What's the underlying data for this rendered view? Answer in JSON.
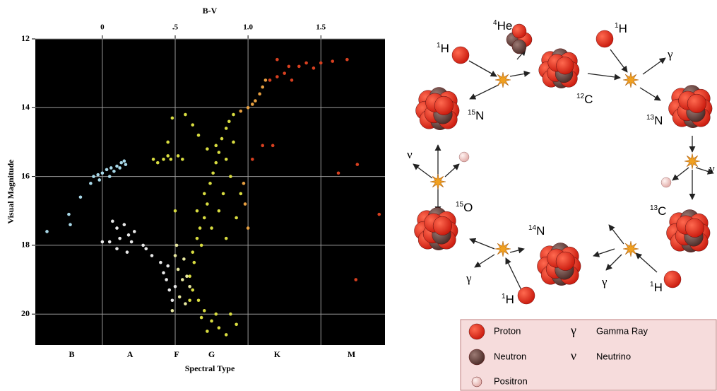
{
  "chart_data": {
    "type": "scatter",
    "title": "B-V",
    "ylabel": "Visual Magnitude",
    "xlabel": "Spectral Type",
    "xlim": [
      -0.46,
      1.94
    ],
    "ylim": [
      12,
      20.9
    ],
    "y_inverted": true,
    "grid": true,
    "xticks": [
      0,
      {
        "value": 0.5,
        "label": ".5"
      },
      {
        "value": 1,
        "label": "1.0"
      },
      1.5
    ],
    "yticks": [
      12,
      14,
      16,
      18,
      20
    ],
    "spectral_types": [
      {
        "value": -0.21,
        "label": "B"
      },
      {
        "value": 0.19,
        "label": "A"
      },
      {
        "value": 0.51,
        "label": "F"
      },
      {
        "value": 0.75,
        "label": "G"
      },
      {
        "value": 1.2,
        "label": "K"
      },
      {
        "value": 1.71,
        "label": "M"
      }
    ],
    "groups": [
      {
        "color": "#a8d8e8",
        "x": [
          -0.38,
          -0.22,
          -0.23,
          -0.15,
          -0.08,
          -0.06,
          -0.03,
          0.0,
          0.03,
          0.06,
          0.1,
          0.13,
          0.15,
          0.05,
          0.08,
          -0.02,
          0.12,
          0.16
        ],
        "y": [
          17.6,
          17.4,
          17.1,
          16.6,
          16.2,
          16.0,
          15.95,
          15.9,
          15.8,
          15.75,
          15.7,
          15.6,
          15.55,
          16.0,
          15.85,
          16.1,
          15.75,
          15.65
        ]
      },
      {
        "color": "#e8e8e8",
        "x": [
          0.05,
          0.1,
          0.1,
          0.15,
          0.18,
          0.2,
          0.07,
          0.12,
          0.17,
          0.0,
          0.22,
          0.28,
          0.3,
          0.34,
          0.4,
          0.42,
          0.44,
          0.46,
          0.48,
          0.45,
          0.5
        ],
        "y": [
          17.9,
          18.1,
          17.5,
          17.4,
          17.7,
          17.9,
          17.3,
          17.8,
          18.2,
          17.9,
          17.6,
          18.0,
          18.1,
          18.3,
          18.5,
          18.8,
          19.0,
          19.3,
          19.6,
          18.6,
          19.2
        ]
      },
      {
        "color": "#e8e8a0",
        "x": [
          0.5,
          0.52,
          0.55,
          0.58,
          0.53,
          0.48,
          0.56,
          0.6,
          0.51,
          0.57
        ],
        "y": [
          18.3,
          18.7,
          19.0,
          18.9,
          19.5,
          19.9,
          18.4,
          19.2,
          18.0,
          19.7
        ]
      },
      {
        "color": "#d8dc40",
        "x": [
          0.35,
          0.38,
          0.42,
          0.45,
          0.47,
          0.52,
          0.55,
          0.48,
          0.45,
          0.5,
          0.62,
          0.65,
          0.67,
          0.7,
          0.72,
          0.7,
          0.74,
          0.76,
          0.78,
          0.8,
          0.78,
          0.82,
          0.85,
          0.87,
          0.9,
          0.83,
          0.88,
          0.8,
          0.75,
          0.68,
          0.63,
          0.6,
          0.62,
          0.66,
          0.7,
          0.75,
          0.8,
          0.85,
          0.78,
          0.72,
          0.88,
          0.92,
          0.68,
          0.6,
          0.57,
          0.62,
          0.66,
          0.85,
          0.9,
          0.72,
          0.65,
          0.95,
          0.92,
          0.85
        ],
        "y": [
          15.5,
          15.6,
          15.5,
          15.4,
          15.5,
          15.4,
          15.5,
          14.3,
          15.0,
          17.0,
          18.2,
          17.8,
          17.5,
          17.2,
          16.8,
          16.5,
          16.2,
          15.9,
          15.6,
          15.3,
          15.1,
          14.9,
          14.6,
          14.4,
          14.2,
          16.5,
          16.0,
          17.0,
          17.5,
          18.0,
          18.5,
          18.9,
          19.3,
          19.6,
          19.9,
          20.2,
          20.4,
          20.6,
          20.0,
          20.5,
          20.0,
          20.3,
          20.1,
          19.6,
          14.2,
          14.5,
          14.8,
          15.5,
          15.0,
          15.2,
          17.0,
          16.5,
          17.2,
          17.8
        ]
      },
      {
        "color": "#e8a040",
        "x": [
          0.95,
          1.0,
          1.05,
          1.08,
          1.1,
          1.03,
          1.12,
          0.98,
          0.97,
          1.0
        ],
        "y": [
          14.1,
          14.0,
          13.8,
          13.6,
          13.4,
          13.9,
          13.2,
          16.8,
          16.2,
          17.5
        ]
      },
      {
        "color": "#d84020",
        "x": [
          1.15,
          1.2,
          1.25,
          1.28,
          1.3,
          1.35,
          1.4,
          1.45,
          1.5,
          1.58,
          1.68,
          1.2,
          1.1,
          1.17,
          1.03,
          1.62,
          1.75,
          1.74,
          1.9
        ],
        "y": [
          13.2,
          13.1,
          13.0,
          12.8,
          13.2,
          12.8,
          12.7,
          12.85,
          12.7,
          12.65,
          12.6,
          12.6,
          15.1,
          15.1,
          15.5,
          15.9,
          15.65,
          19.0,
          17.1
        ]
      }
    ]
  },
  "diagram": {
    "labels": [
      {
        "sup": "4",
        "text": "He"
      },
      {
        "sup": "1",
        "text": "H"
      },
      {
        "sup": "1",
        "text": "H"
      },
      {
        "text": "γ"
      },
      {
        "sup": "12",
        "text": "C"
      },
      {
        "sup": "15",
        "text": "N"
      },
      {
        "sup": "13",
        "text": "N"
      },
      {
        "text": "ν"
      },
      {
        "text": "ν"
      },
      {
        "sup": "15",
        "text": "O"
      },
      {
        "sup": "13",
        "text": "C"
      },
      {
        "sup": "14",
        "text": "N"
      },
      {
        "text": "γ"
      },
      {
        "sup": "1",
        "text": "H"
      },
      {
        "text": "γ"
      },
      {
        "sup": "1",
        "text": "H"
      }
    ],
    "legend": [
      {
        "text": "Proton"
      },
      {
        "symbol": "γ",
        "text": "Gamma Ray"
      },
      {
        "text": "Neutron"
      },
      {
        "symbol": "ν",
        "text": "Neutrino"
      },
      {
        "text": "Positron"
      }
    ]
  }
}
